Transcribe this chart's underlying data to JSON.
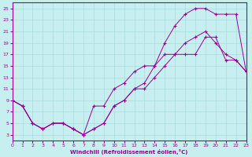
{
  "xlabel": "Windchill (Refroidissement éolien,°C)",
  "xlim": [
    0,
    23
  ],
  "ylim": [
    2,
    26
  ],
  "xticks": [
    0,
    1,
    2,
    3,
    4,
    5,
    6,
    7,
    8,
    9,
    10,
    11,
    12,
    13,
    14,
    15,
    16,
    17,
    18,
    19,
    20,
    21,
    22,
    23
  ],
  "yticks": [
    3,
    5,
    7,
    9,
    11,
    13,
    15,
    17,
    19,
    21,
    23,
    25
  ],
  "bg_color": "#c8efef",
  "line_color": "#990099",
  "grid_color": "#a8dcdc",
  "line1_x": [
    0,
    1,
    2,
    3,
    4,
    5,
    6,
    7,
    8,
    9,
    10,
    11,
    12,
    13,
    14,
    15,
    16,
    17,
    18,
    19,
    20,
    21,
    22,
    23
  ],
  "line1_y": [
    9,
    8,
    5,
    4,
    5,
    5,
    4,
    3,
    4,
    5,
    8,
    9,
    11,
    11,
    13,
    15,
    17,
    19,
    20,
    21,
    19,
    17,
    16,
    14
  ],
  "line2_x": [
    0,
    1,
    2,
    3,
    4,
    5,
    6,
    7,
    8,
    9,
    10,
    11,
    12,
    13,
    14,
    15,
    16,
    17,
    18,
    19,
    20,
    21,
    22,
    23
  ],
  "line2_y": [
    9,
    8,
    5,
    4,
    5,
    5,
    4,
    3,
    8,
    8,
    11,
    12,
    14,
    15,
    15,
    19,
    22,
    24,
    25,
    25,
    24,
    24,
    24,
    14
  ],
  "line3_x": [
    0,
    1,
    2,
    3,
    4,
    5,
    6,
    7,
    8,
    9,
    10,
    11,
    12,
    13,
    14,
    15,
    16,
    17,
    18,
    19,
    20,
    21,
    22,
    23
  ],
  "line3_y": [
    9,
    8,
    5,
    4,
    5,
    5,
    4,
    3,
    4,
    5,
    8,
    9,
    11,
    12,
    15,
    17,
    17,
    17,
    17,
    20,
    20,
    16,
    16,
    14
  ]
}
